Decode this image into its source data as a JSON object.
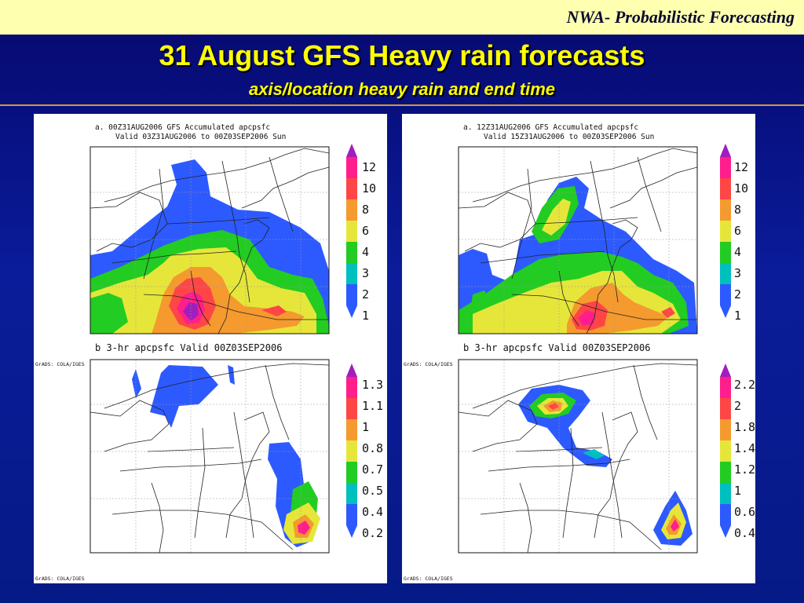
{
  "header": {
    "org": "NWA-",
    "topic": "Probabilistic Forecasting"
  },
  "slide": {
    "title": "31 August GFS Heavy rain forecasts",
    "subtitle": "axis/location heavy rain and end time"
  },
  "colors": {
    "c1": "#2d5aff",
    "c2": "#00bfbf",
    "c3": "#22cc22",
    "c4": "#e6e63a",
    "c5": "#f59a2e",
    "c6": "#ff4646",
    "c7": "#ff1e8c",
    "c8": "#a01ebe"
  },
  "panels": [
    {
      "top": {
        "title_line1": "a. 00Z31AUG2006 GFS  Accumulated apcpsfc",
        "title_line2": "Valid 03Z31AUG2006 to 00Z03SEP2006 Sun",
        "legend": [
          "12",
          "10",
          "8",
          "6",
          "4",
          "3",
          "2",
          "1"
        ]
      },
      "bottom": {
        "title": "b 3-hr apcpsfc Valid 00Z03SEP2006",
        "legend": [
          "1.3",
          "1.1",
          "1",
          "0.8",
          "0.7",
          "0.5",
          "0.4",
          "0.2"
        ]
      },
      "credit_mid": "GrADS: COLA/IGES",
      "credit_bottom": "GrADS: COLA/IGES"
    },
    {
      "top": {
        "title_line1": "a. 12Z31AUG2006 GFS  Accumulated apcpsfc",
        "title_line2": "Valid 15Z31AUG2006 to 00Z03SEP2006 Sun",
        "legend": [
          "12",
          "10",
          "8",
          "6",
          "4",
          "3",
          "2",
          "1"
        ]
      },
      "bottom": {
        "title": "b 3-hr apcpsfc Valid 00Z03SEP2006",
        "legend": [
          "2.2",
          "2",
          "1.8",
          "1.4",
          "1.2",
          "1",
          "0.6",
          "0.4"
        ]
      },
      "credit_mid": "GrADS: COLA/IGES",
      "credit_bottom": "GrADS: COLA/IGES"
    }
  ]
}
